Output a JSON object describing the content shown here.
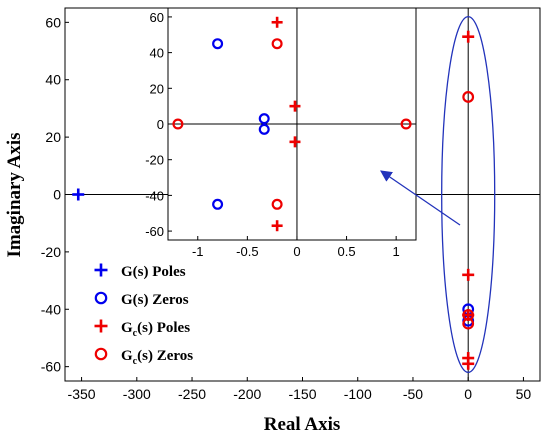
{
  "chart_data": [
    {
      "type": "scatter",
      "name": "main",
      "xlabel": "Real Axis",
      "ylabel": "Imaginary Axis",
      "xlim": [
        -365,
        65
      ],
      "ylim": [
        -65,
        65
      ],
      "xticks": [
        -350,
        -300,
        -250,
        -200,
        -150,
        -100,
        -50,
        0,
        50
      ],
      "yticks": [
        -60,
        -40,
        -20,
        0,
        20,
        40,
        60
      ],
      "axis_lines": true,
      "series": [
        {
          "name": "G(s) Poles",
          "marker": "plus",
          "color": "#0000ee",
          "points": [
            [
              -353,
              0
            ]
          ]
        },
        {
          "name": "G(s) Zeros",
          "marker": "circle",
          "color": "#0000ee",
          "points": [
            [
              0,
              -40
            ],
            [
              0,
              -44
            ]
          ]
        },
        {
          "name": "Gc(s) Poles",
          "marker": "plus",
          "color": "#ee0000",
          "points": [
            [
              0,
              55
            ],
            [
              0,
              -28
            ],
            [
              0,
              -42
            ],
            [
              0,
              -59
            ],
            [
              0,
              -57
            ]
          ]
        },
        {
          "name": "Gc(s) Zeros",
          "marker": "circle",
          "color": "#ee0000",
          "points": [
            [
              0,
              34
            ],
            [
              0,
              -42
            ],
            [
              0,
              -45
            ]
          ]
        }
      ],
      "highlight": {
        "shape": "ellipse",
        "center": [
          0,
          0
        ],
        "radius_x": 24,
        "radius_y": 62,
        "color": "#2233bb"
      }
    },
    {
      "type": "scatter",
      "name": "inset",
      "xlim": [
        -1.3,
        1.2
      ],
      "ylim": [
        -65,
        65
      ],
      "xticks": [
        -1,
        -0.5,
        0,
        0.5,
        1
      ],
      "yticks": [
        -60,
        -40,
        -20,
        0,
        20,
        40,
        60
      ],
      "axis_lines": true,
      "series": [
        {
          "name": "G(s) Poles",
          "marker": "plus",
          "color": "#0000ee",
          "points": []
        },
        {
          "name": "G(s) Zeros",
          "marker": "circle",
          "color": "#0000ee",
          "points": [
            [
              -0.8,
              45
            ],
            [
              -0.8,
              -45
            ],
            [
              -0.33,
              3
            ],
            [
              -0.33,
              -3
            ]
          ]
        },
        {
          "name": "Gc(s) Poles",
          "marker": "plus",
          "color": "#ee0000",
          "points": [
            [
              -0.2,
              57
            ],
            [
              -0.2,
              -57
            ],
            [
              -0.02,
              10
            ],
            [
              -0.02,
              -10
            ]
          ]
        },
        {
          "name": "Gc(s) Zeros",
          "marker": "circle",
          "color": "#ee0000",
          "points": [
            [
              -0.2,
              45
            ],
            [
              -0.2,
              -45
            ],
            [
              -1.2,
              0
            ],
            [
              1.1,
              0
            ]
          ]
        }
      ]
    }
  ],
  "legend": {
    "placement": "bottom-left",
    "items": [
      {
        "main": "G(s) Poles",
        "marker": "plus",
        "color": "#0000ee"
      },
      {
        "main": "G(s) Zeros",
        "marker": "circle",
        "color": "#0000ee"
      },
      {
        "main": "G",
        "sub": "c",
        "rest": "(s) Poles",
        "marker": "plus",
        "color": "#ee0000"
      },
      {
        "main": "G",
        "sub": "c",
        "rest": "(s) Zeros",
        "marker": "circle",
        "color": "#ee0000"
      }
    ]
  },
  "colors": {
    "blue": "#0000ee",
    "red": "#ee0000",
    "ellipse": "#2233bb",
    "arrow": "#2233bb"
  }
}
